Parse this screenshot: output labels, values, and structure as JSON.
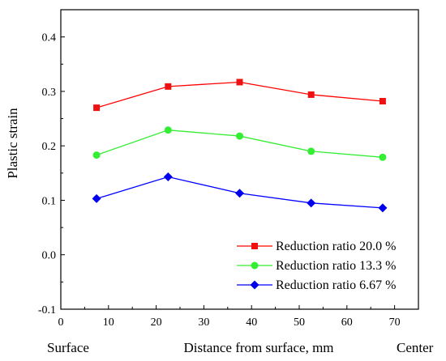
{
  "chart_data": {
    "type": "line",
    "title": "",
    "xlabel": "Distance from surface, mm",
    "ylabel": "Plastic strain",
    "xlim": [
      0,
      75
    ],
    "ylim": [
      -0.1,
      0.45
    ],
    "xticks": [
      0,
      10,
      20,
      30,
      40,
      50,
      60,
      70
    ],
    "yticks": [
      -0.1,
      0.0,
      0.1,
      0.2,
      0.3,
      0.4
    ],
    "xtick_labels": [
      "0",
      "10",
      "20",
      "30",
      "40",
      "50",
      "60",
      "70"
    ],
    "ytick_labels": [
      "-0.1",
      "0.0",
      "0.1",
      "0.2",
      "0.3",
      "0.4"
    ],
    "grid": false,
    "legend_position": "bottom-right",
    "axis_end_labels": {
      "left": "Surface",
      "right": "Center"
    },
    "series": [
      {
        "name": "Reduction ratio 20.0 %",
        "color": "#ff0000",
        "marker": "square",
        "marker_color": "#ee1111",
        "x": [
          7.5,
          22.5,
          37.5,
          52.5,
          67.5
        ],
        "y": [
          0.27,
          0.309,
          0.317,
          0.294,
          0.282
        ]
      },
      {
        "name": "Reduction ratio 13.3 %",
        "color": "#33ee33",
        "marker": "circle",
        "marker_color": "#33ee33",
        "x": [
          7.5,
          22.5,
          37.5,
          52.5,
          67.5
        ],
        "y": [
          0.183,
          0.229,
          0.218,
          0.19,
          0.179
        ]
      },
      {
        "name": "Reduction ratio 6.67 %",
        "color": "#0000ff",
        "marker": "diamond",
        "marker_color": "#0000ee",
        "x": [
          7.5,
          22.5,
          37.5,
          52.5,
          67.5
        ],
        "y": [
          0.103,
          0.143,
          0.113,
          0.095,
          0.086
        ]
      }
    ]
  }
}
